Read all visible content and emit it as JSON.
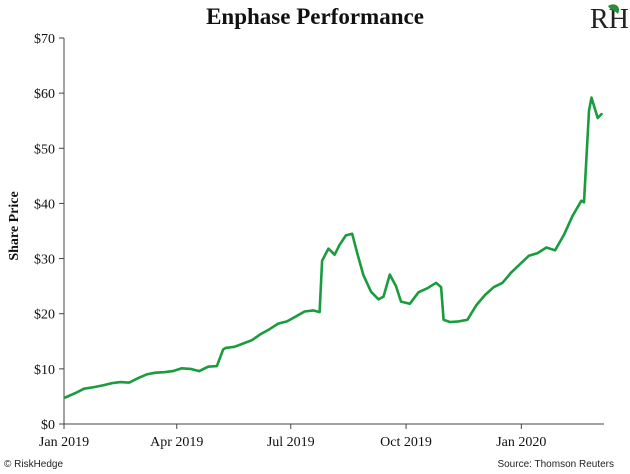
{
  "header": {
    "title": "Enphase Performance",
    "logo_text": "RH"
  },
  "footer": {
    "brand": "© RiskHedge",
    "source": "Source: Thomson Reuters"
  },
  "colors": {
    "line": "#1a9c3e",
    "axis": "#444444",
    "gridline": "#e0e0e0",
    "logo_accent": "#2f8a3a"
  },
  "chart_data": {
    "type": "line",
    "title": "Enphase Performance",
    "xlabel": "",
    "ylabel": "Share Price",
    "ylim": [
      0,
      70
    ],
    "yticks": [
      0,
      10,
      20,
      30,
      40,
      50,
      60,
      70
    ],
    "ytick_labels": [
      "$0",
      "$10",
      "$20",
      "$30",
      "$40",
      "$50",
      "$60",
      "$70"
    ],
    "xlim": [
      "2019-01-01",
      "2020-03-07"
    ],
    "xticks": [
      "2019-01-01",
      "2019-04-01",
      "2019-07-01",
      "2019-10-01",
      "2020-01-01"
    ],
    "xtick_labels": [
      "Jan 2019",
      "Apr 2019",
      "Jul 2019",
      "Oct 2019",
      "Jan 2020"
    ],
    "grid": false,
    "legend": "none",
    "series": [
      {
        "x": [
          "2019-01-02",
          "2019-01-10",
          "2019-01-17",
          "2019-01-25",
          "2019-02-01",
          "2019-02-08",
          "2019-02-15",
          "2019-02-22",
          "2019-03-01",
          "2019-03-08",
          "2019-03-15",
          "2019-03-22",
          "2019-03-29",
          "2019-04-05",
          "2019-04-12",
          "2019-04-19",
          "2019-04-26",
          "2019-05-03",
          "2019-05-08",
          "2019-05-10",
          "2019-05-17",
          "2019-05-24",
          "2019-05-31",
          "2019-06-07",
          "2019-06-14",
          "2019-06-21",
          "2019-06-28",
          "2019-07-05",
          "2019-07-12",
          "2019-07-19",
          "2019-07-24",
          "2019-07-26",
          "2019-07-31",
          "2019-08-05",
          "2019-08-09",
          "2019-08-14",
          "2019-08-19",
          "2019-08-23",
          "2019-08-28",
          "2019-09-03",
          "2019-09-09",
          "2019-09-13",
          "2019-09-18",
          "2019-09-23",
          "2019-09-27",
          "2019-10-04",
          "2019-10-11",
          "2019-10-18",
          "2019-10-25",
          "2019-10-29",
          "2019-10-31",
          "2019-11-05",
          "2019-11-12",
          "2019-11-19",
          "2019-11-26",
          "2019-12-03",
          "2019-12-10",
          "2019-12-17",
          "2019-12-24",
          "2019-12-31",
          "2020-01-07",
          "2020-01-14",
          "2020-01-21",
          "2020-01-28",
          "2020-02-04",
          "2020-02-11",
          "2020-02-18",
          "2020-02-20",
          "2020-02-24",
          "2020-02-26",
          "2020-03-02",
          "2020-03-05"
        ],
        "values": [
          4.8,
          5.6,
          6.4,
          6.7,
          7.0,
          7.4,
          7.6,
          7.5,
          8.3,
          9.0,
          9.3,
          9.4,
          9.6,
          10.1,
          10.0,
          9.6,
          10.4,
          10.5,
          13.5,
          13.8,
          14.0,
          14.6,
          15.2,
          16.3,
          17.2,
          18.2,
          18.6,
          19.5,
          20.4,
          20.6,
          20.3,
          29.6,
          31.8,
          30.7,
          32.5,
          34.2,
          34.5,
          31.0,
          27.0,
          24.0,
          22.6,
          23.1,
          27.1,
          25.0,
          22.2,
          21.8,
          23.9,
          24.6,
          25.6,
          24.8,
          18.9,
          18.5,
          18.6,
          18.9,
          21.5,
          23.4,
          24.8,
          25.6,
          27.5,
          29.0,
          30.5,
          31.0,
          32.0,
          31.5,
          34.3,
          37.8,
          40.5,
          40.2,
          56.8,
          59.2,
          55.5,
          56.2
        ]
      }
    ]
  }
}
